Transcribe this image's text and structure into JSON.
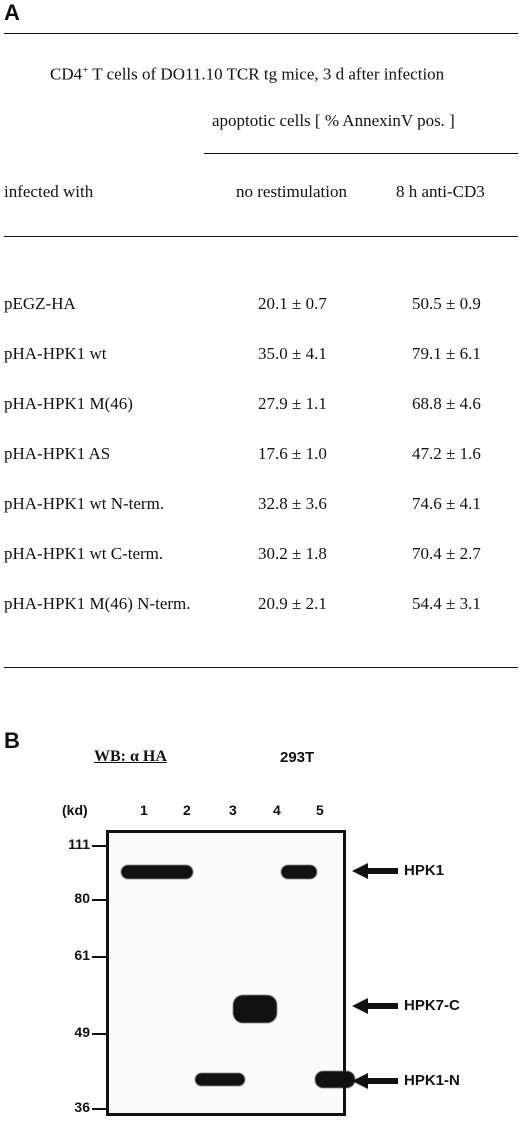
{
  "panel_a": {
    "letter": "A",
    "caption_prefix": "CD4",
    "caption_sup": "+",
    "caption_rest": " T cells of DO11.10 TCR tg mice, 3 d after infection",
    "subheader": "apoptotic cells  [ % AnnexinV pos. ]",
    "col_header_label": "infected with",
    "col_header_1": "no restimulation",
    "col_header_2": "8 h  anti-CD3",
    "rows": [
      {
        "label": "pEGZ-HA",
        "v1": "20.1 ±  0.7",
        "v2": "50.5 ±  0.9"
      },
      {
        "label": "pHA-HPK1 wt",
        "v1": "35.0 ±  4.1",
        "v2": "79.1 ±  6.1"
      },
      {
        "label": "pHA-HPK1 M(46)",
        "v1": "27.9 ±  1.1",
        "v2": "68.8 ±  4.6"
      },
      {
        "label": "pHA-HPK1 AS",
        "v1": "17.6 ±  1.0",
        "v2": "47.2 ±  1.6"
      },
      {
        "label": "pHA-HPK1 wt N-term.",
        "v1": "32.8 ±  3.6",
        "v2": "74.6 ±  4.1"
      },
      {
        "label": "pHA-HPK1 wt C-term.",
        "v1": "30.2 ±  1.8",
        "v2": "70.4 ±  2.7"
      },
      {
        "label": "pHA-HPK1 M(46) N-term.",
        "v1": "20.9 ±  2.1",
        "v2": "54.4 ±  3.1"
      }
    ]
  },
  "panel_b": {
    "letter": "B",
    "wb_label": "WB: α HA",
    "cell_line": "293T",
    "kd_label": "(kd)",
    "lanes": [
      "1",
      "2",
      "3",
      "4",
      "5"
    ],
    "mw_markers": [
      "111",
      "80",
      "61",
      "49",
      "36"
    ],
    "band_labels": [
      "HPK1",
      "HPK7-C",
      "HPK1-N"
    ]
  }
}
